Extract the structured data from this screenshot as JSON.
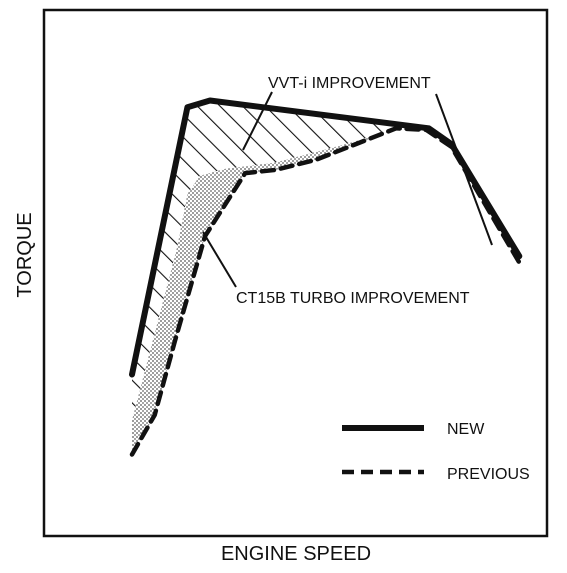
{
  "chart_data": {
    "type": "line",
    "title": "",
    "xlabel": "ENGINE SPEED",
    "ylabel": "TORQUE",
    "xlim": [
      0,
      100
    ],
    "ylim": [
      0,
      100
    ],
    "grid": false,
    "legend_position": "bottom-right",
    "series": [
      {
        "name": "NEW",
        "style": "solid",
        "x": [
          17.5,
          28.5,
          33,
          76.5,
          81,
          94.5
        ],
        "y": [
          30.7,
          81.5,
          82.8,
          77.5,
          74.5,
          53.2
        ]
      },
      {
        "name": "PREVIOUS",
        "style": "dashed",
        "x": [
          17.5,
          22,
          26,
          32,
          40,
          46,
          54,
          62,
          70,
          76,
          81,
          94.5
        ],
        "y": [
          15.5,
          23,
          37,
          57,
          69,
          69.6,
          71.5,
          74.5,
          77.5,
          77.2,
          74,
          52
        ]
      }
    ],
    "regions": [
      {
        "label": "VVT-i IMPROVEMENT",
        "pattern": "hatched"
      },
      {
        "label": "CT15B TURBO IMPROVEMENT",
        "pattern": "dotted"
      }
    ],
    "colors": {
      "line": "#111111",
      "background": "#ffffff",
      "dots": "#555555"
    }
  }
}
